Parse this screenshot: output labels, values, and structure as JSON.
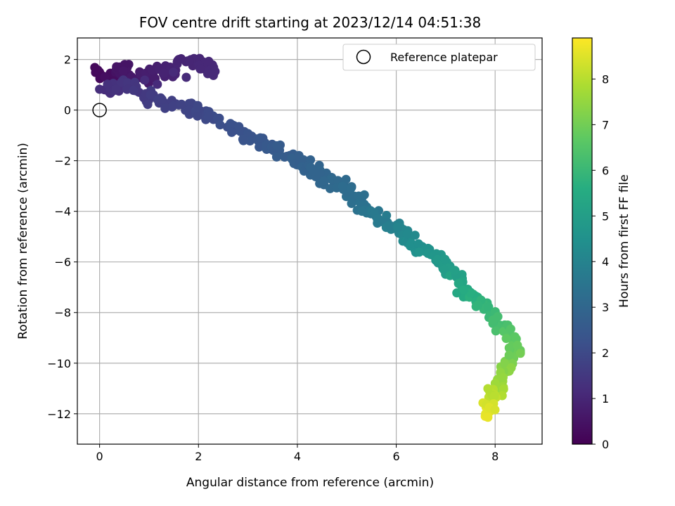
{
  "chart_data": {
    "type": "scatter",
    "title": "FOV centre drift starting at 2023/12/14 04:51:38",
    "xlabel": "Angular distance from reference (arcmin)",
    "ylabel": "Rotation from reference (arcmin)",
    "xlim": [
      -0.45,
      8.95
    ],
    "ylim": [
      -13.2,
      2.85
    ],
    "xticks": [
      0,
      2,
      4,
      6,
      8
    ],
    "yticks": [
      2,
      0,
      -2,
      -4,
      -6,
      -8,
      -10,
      -12
    ],
    "grid": true,
    "legend": {
      "position": "top-right",
      "entries": [
        "Reference platepar"
      ]
    },
    "colorbar": {
      "label": "Hours from first FF file",
      "colormap": "viridis",
      "range": [
        0,
        8.9
      ],
      "ticks": [
        0,
        1,
        2,
        3,
        4,
        5,
        6,
        7,
        8
      ]
    },
    "reference_point": {
      "x": 0,
      "y": 0
    },
    "series": [
      {
        "description_free_track": true,
        "points": [
          [
            0.0,
            1.5,
            0.2
          ],
          [
            0.2,
            1.3,
            0.3
          ],
          [
            0.4,
            1.7,
            0.5
          ],
          [
            0.6,
            1.4,
            0.6
          ],
          [
            0.9,
            1.2,
            0.7
          ],
          [
            1.1,
            1.6,
            0.8
          ],
          [
            1.4,
            1.5,
            0.9
          ],
          [
            1.6,
            2.0,
            0.95
          ],
          [
            1.9,
            1.8,
            1.0
          ],
          [
            2.1,
            1.9,
            1.05
          ],
          [
            2.2,
            1.5,
            1.1
          ],
          [
            0.1,
            0.8,
            1.2
          ],
          [
            0.3,
            0.9,
            1.3
          ],
          [
            0.5,
            1.0,
            1.4
          ],
          [
            0.8,
            0.7,
            1.5
          ],
          [
            1.0,
            0.5,
            1.6
          ],
          [
            1.3,
            0.3,
            1.7
          ],
          [
            1.6,
            0.2,
            1.8
          ],
          [
            1.9,
            0.0,
            1.9
          ],
          [
            2.1,
            -0.2,
            2.0
          ],
          [
            2.4,
            -0.4,
            2.1
          ],
          [
            2.7,
            -0.7,
            2.2
          ],
          [
            2.9,
            -0.9,
            2.3
          ],
          [
            3.2,
            -1.2,
            2.4
          ],
          [
            3.4,
            -1.5,
            2.5
          ],
          [
            3.6,
            -1.6,
            2.6
          ],
          [
            3.9,
            -1.9,
            2.7
          ],
          [
            4.1,
            -2.1,
            2.8
          ],
          [
            4.3,
            -2.4,
            2.9
          ],
          [
            4.6,
            -2.7,
            3.0
          ],
          [
            4.8,
            -2.9,
            3.1
          ],
          [
            5.0,
            -3.1,
            3.2
          ],
          [
            5.2,
            -3.5,
            3.3
          ],
          [
            5.4,
            -3.9,
            3.5
          ],
          [
            5.6,
            -4.1,
            3.6
          ],
          [
            5.8,
            -4.4,
            3.8
          ],
          [
            6.0,
            -4.7,
            4.0
          ],
          [
            6.2,
            -5.0,
            4.2
          ],
          [
            6.4,
            -5.4,
            4.4
          ],
          [
            6.6,
            -5.6,
            4.6
          ],
          [
            6.9,
            -6.0,
            4.8
          ],
          [
            7.1,
            -6.4,
            5.0
          ],
          [
            7.3,
            -6.9,
            5.3
          ],
          [
            7.5,
            -7.2,
            5.5
          ],
          [
            7.7,
            -7.6,
            5.8
          ],
          [
            7.9,
            -8.0,
            6.0
          ],
          [
            8.1,
            -8.5,
            6.3
          ],
          [
            8.3,
            -9.0,
            6.6
          ],
          [
            8.4,
            -9.6,
            6.9
          ],
          [
            8.3,
            -10.1,
            7.2
          ],
          [
            8.1,
            -10.6,
            7.5
          ],
          [
            8.0,
            -11.1,
            7.9
          ],
          [
            7.9,
            -11.6,
            8.3
          ],
          [
            7.8,
            -12.1,
            8.7
          ]
        ]
      }
    ]
  }
}
